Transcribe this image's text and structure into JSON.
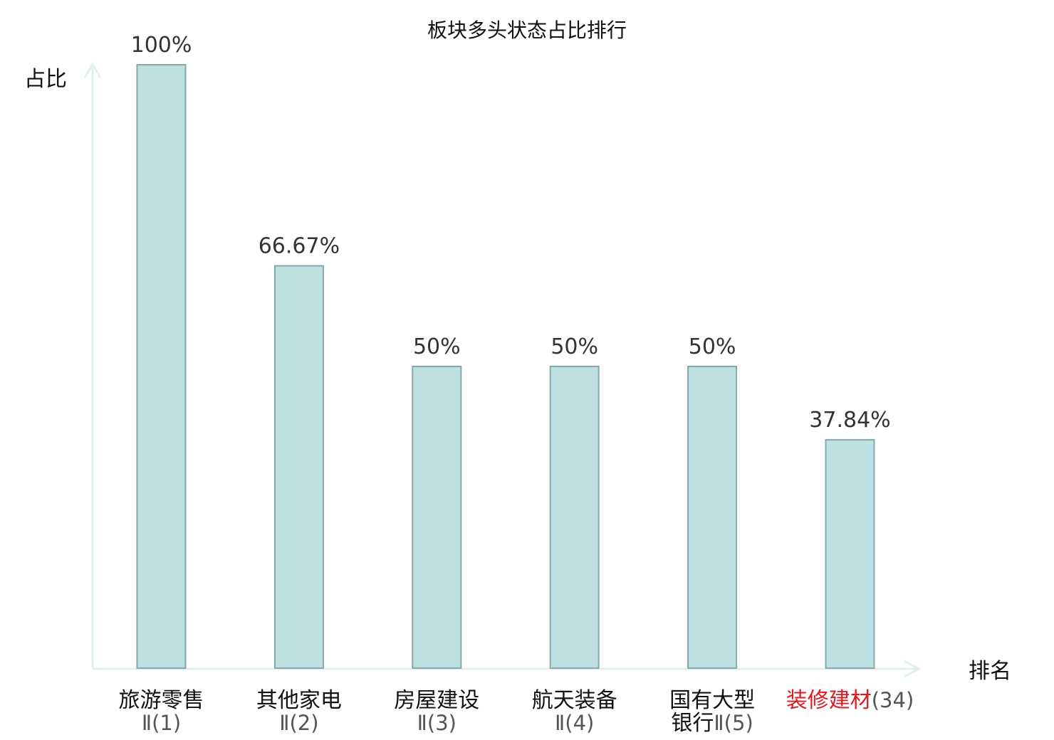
{
  "chart_data": {
    "type": "bar",
    "title": "板块多头状态占比排行",
    "ylabel": "占比",
    "xlabel": "排名",
    "ylim": [
      0,
      100
    ],
    "grid": false,
    "value_suffix": "%",
    "categories": [
      {
        "name_lines": [
          "旅游零售"
        ],
        "suffix": "Ⅱ(1)",
        "highlight": false
      },
      {
        "name_lines": [
          "其他家电"
        ],
        "suffix": "Ⅱ(2)",
        "highlight": false
      },
      {
        "name_lines": [
          "房屋建设"
        ],
        "suffix": "Ⅱ(3)",
        "highlight": false
      },
      {
        "name_lines": [
          "航天装备"
        ],
        "suffix": "Ⅱ(4)",
        "highlight": false
      },
      {
        "name_lines": [
          "国有大型",
          "银行"
        ],
        "suffix": "Ⅱ(5)",
        "highlight": false
      },
      {
        "name_lines": [
          "装修建材"
        ],
        "suffix": "(34)",
        "highlight": true
      }
    ],
    "values": [
      100,
      66.67,
      50,
      50,
      50,
      37.84
    ],
    "value_labels": [
      "100%",
      "66.67%",
      "50%",
      "50%",
      "50%",
      "37.84%"
    ],
    "colors": {
      "bar_fill": "#bde0e3",
      "bar_stroke": "#86a7ab",
      "axis": "#dff0ee",
      "text": "#111111",
      "highlight_text": "#e0191e"
    }
  }
}
